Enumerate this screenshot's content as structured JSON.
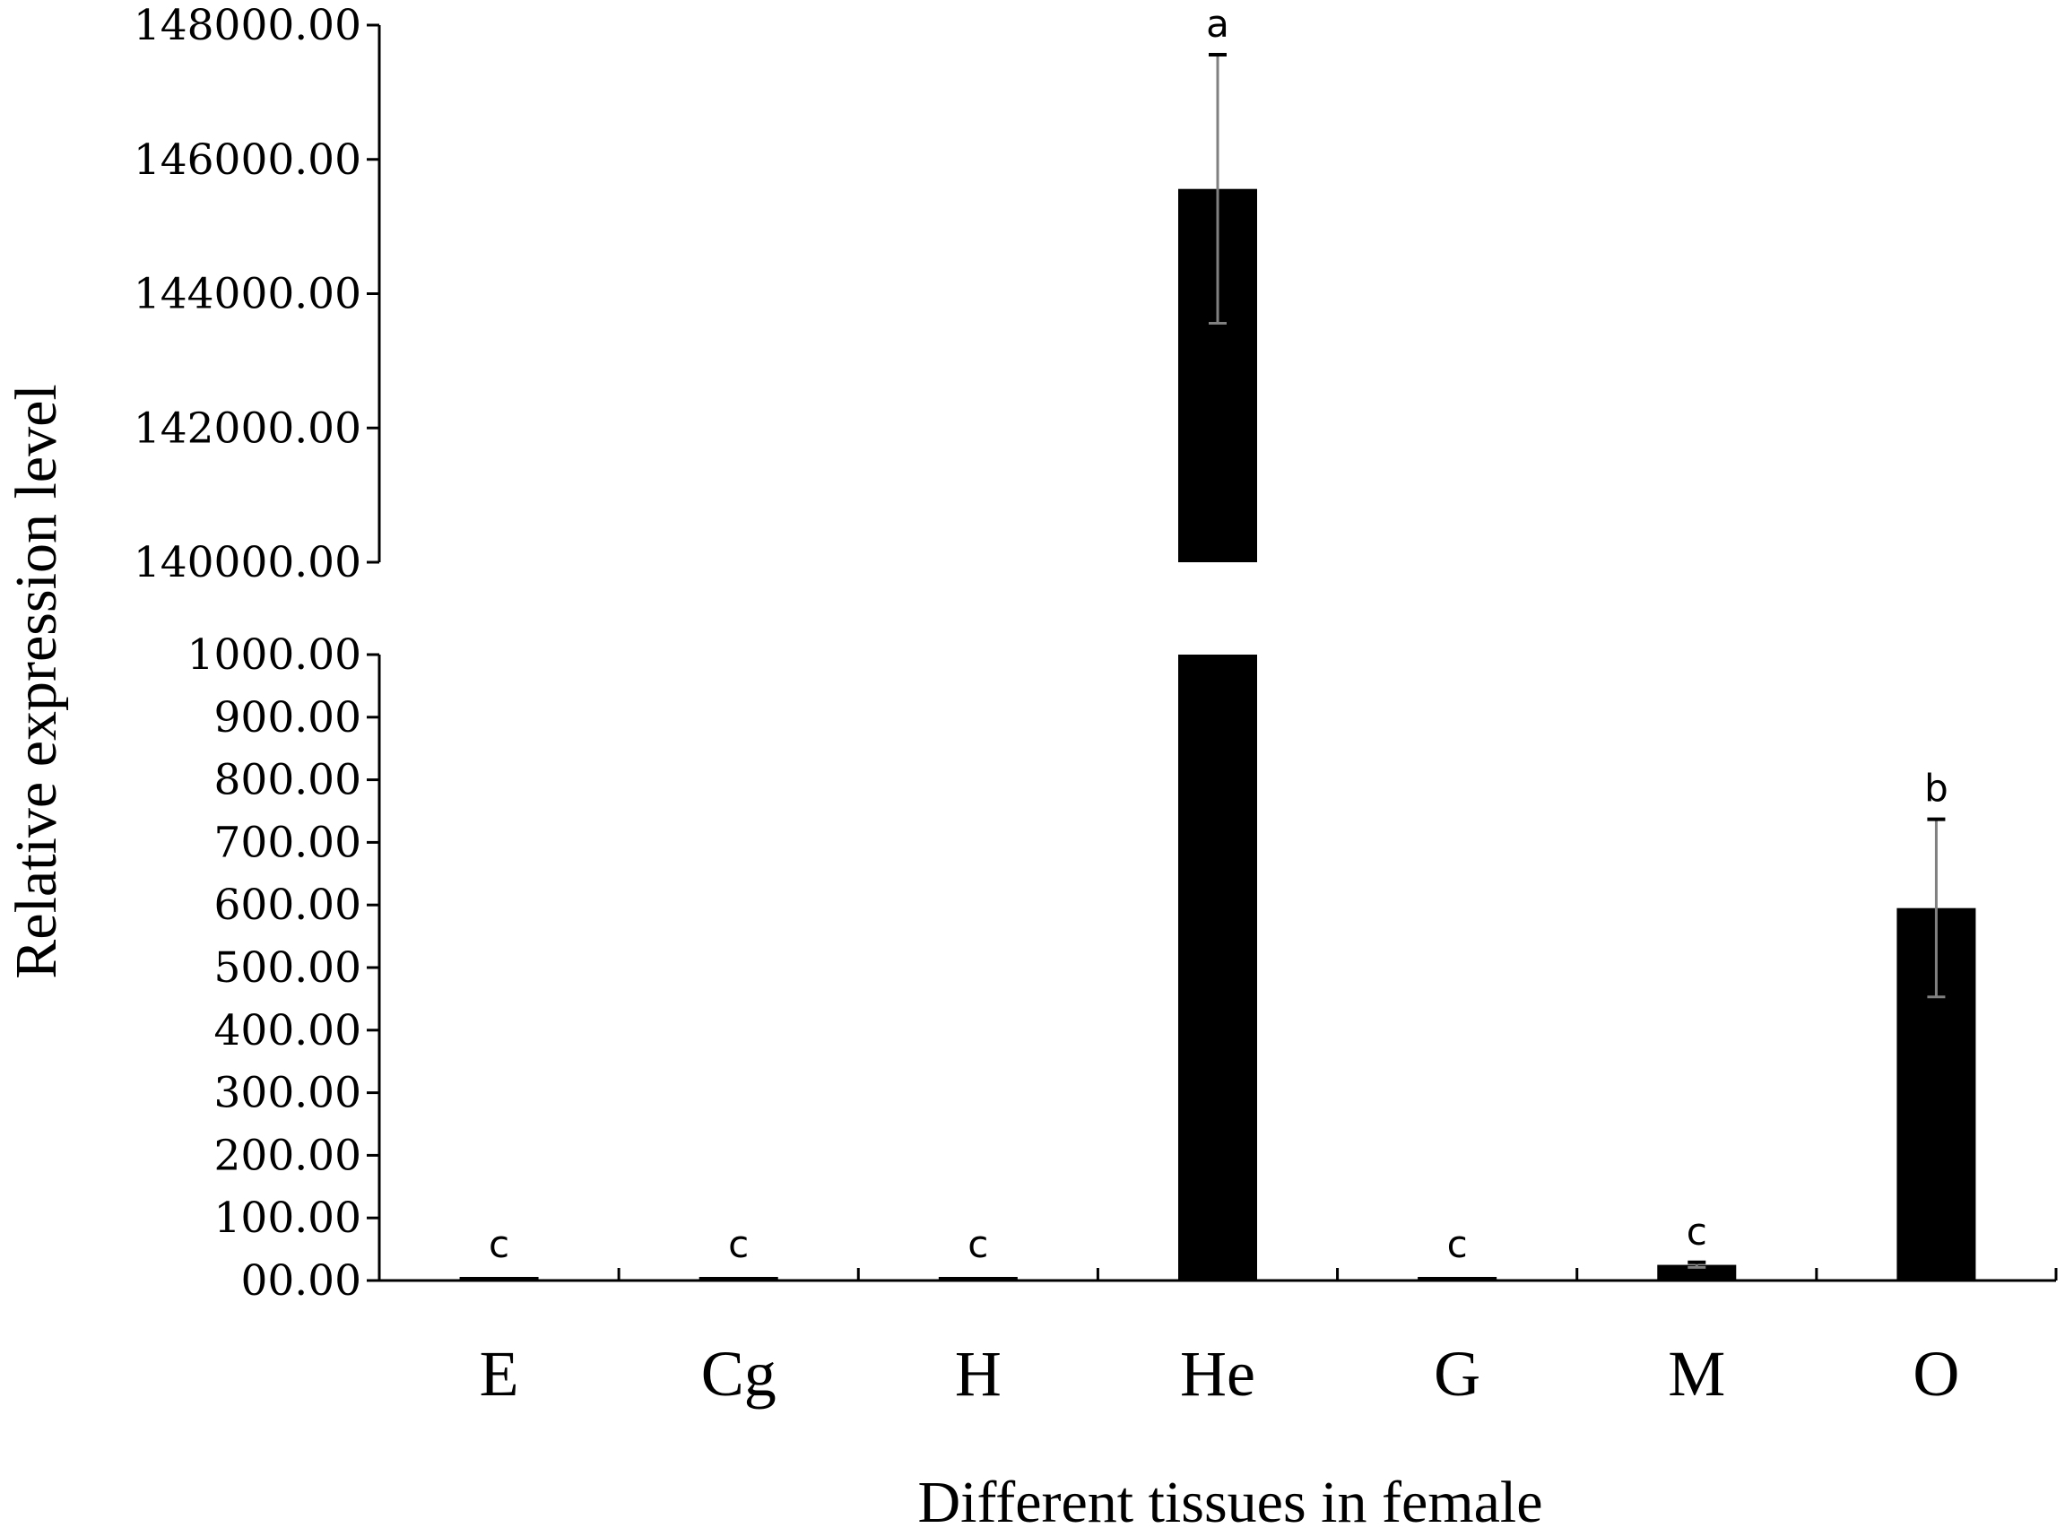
{
  "chart_data": {
    "type": "bar",
    "title": "",
    "xlabel": "Different tissues in female",
    "ylabel": "Relative expression level",
    "categories": [
      "E",
      "Cg",
      "H",
      "He",
      "G",
      "M",
      "O"
    ],
    "values": [
      2,
      3,
      2,
      145560,
      2,
      25,
      595
    ],
    "error": [
      1,
      1,
      1,
      2000,
      1,
      4,
      142
    ],
    "significance": [
      "c",
      "c",
      "c",
      "a",
      "c",
      "c",
      "b"
    ],
    "axis_break": {
      "lower_range": [
        0,
        1000
      ],
      "upper_range": [
        140000,
        148000
      ]
    },
    "y_ticks_lower": [
      "00.00",
      "100.00",
      "200.00",
      "300.00",
      "400.00",
      "500.00",
      "600.00",
      "700.00",
      "800.00",
      "900.00",
      "1000.00"
    ],
    "y_ticks_upper": [
      "140000.00",
      "142000.00",
      "144000.00",
      "146000.00",
      "148000.00"
    ],
    "grid": false,
    "legend": "none",
    "colors": {
      "bar": "#000000",
      "error_bar": "#808080",
      "axis": "#000000"
    }
  }
}
